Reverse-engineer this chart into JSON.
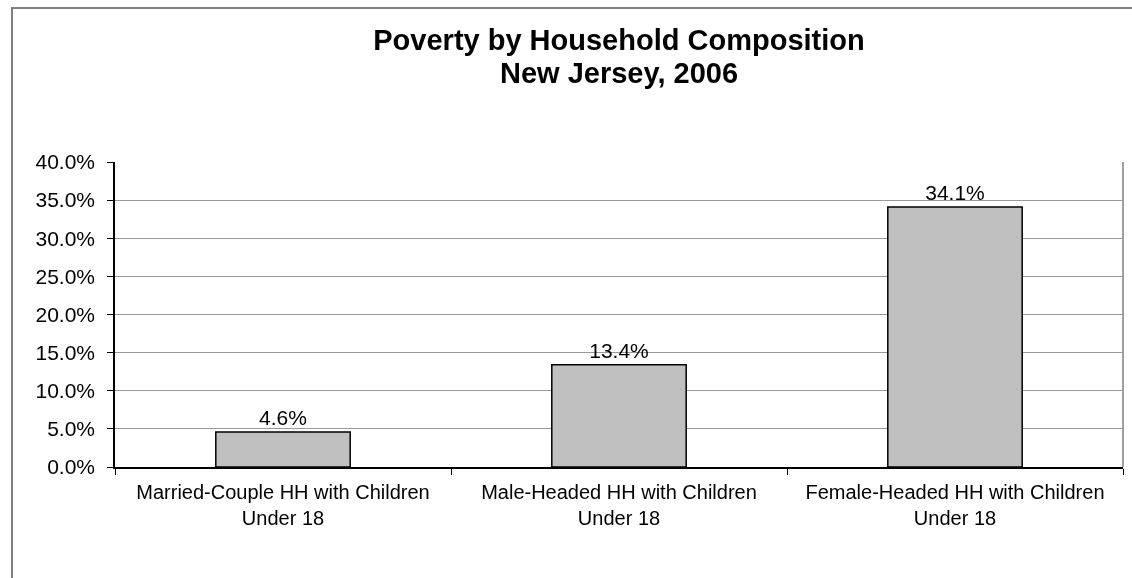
{
  "chart_data": {
    "type": "bar",
    "title": "Poverty by Household Composition",
    "subtitle": "New Jersey, 2006",
    "categories": [
      "Married-Couple HH with Children Under 18",
      "Male-Headed HH with Children Under 18",
      "Female-Headed HH with Children Under 18"
    ],
    "values": [
      4.6,
      13.4,
      34.1
    ],
    "value_labels": [
      "4.6%",
      "13.4%",
      "34.1%"
    ],
    "color": "#c0c0c0",
    "ylim": [
      0,
      40
    ],
    "yticks": [
      {
        "value": 0,
        "label": "0.0%"
      },
      {
        "value": 5,
        "label": "5.0%"
      },
      {
        "value": 10,
        "label": "10.0%"
      },
      {
        "value": 15,
        "label": "15.0%"
      },
      {
        "value": 20,
        "label": "20.0%"
      },
      {
        "value": 25,
        "label": "25.0%"
      },
      {
        "value": 30,
        "label": "30.0%"
      },
      {
        "value": 35,
        "label": "35.0%"
      },
      {
        "value": 40,
        "label": "40.0%"
      }
    ],
    "grid": "y"
  }
}
